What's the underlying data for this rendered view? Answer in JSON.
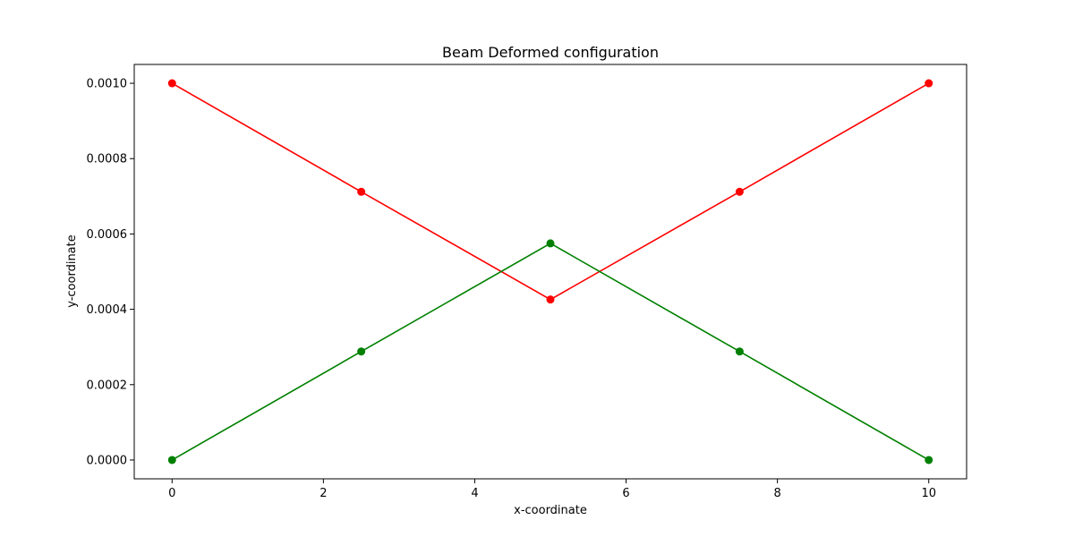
{
  "chart_data": {
    "type": "line",
    "title": "Beam Deformed configuration",
    "xlabel": "x-coordinate",
    "ylabel": "y-coordinate",
    "xlim": [
      -0.5,
      10.5
    ],
    "ylim": [
      -5e-05,
      0.00105
    ],
    "xticks": [
      {
        "value": 0,
        "label": "0"
      },
      {
        "value": 2,
        "label": "2"
      },
      {
        "value": 4,
        "label": "4"
      },
      {
        "value": 6,
        "label": "6"
      },
      {
        "value": 8,
        "label": "8"
      },
      {
        "value": 10,
        "label": "10"
      }
    ],
    "yticks": [
      {
        "value": 0.0,
        "label": "0.0000"
      },
      {
        "value": 0.0002,
        "label": "0.0002"
      },
      {
        "value": 0.0004,
        "label": "0.0004"
      },
      {
        "value": 0.0006,
        "label": "0.0006"
      },
      {
        "value": 0.0008,
        "label": "0.0008"
      },
      {
        "value": 0.001,
        "label": "0.0010"
      }
    ],
    "grid": false,
    "series": [
      {
        "name": "red-series",
        "color": "#ff0000",
        "x": [
          0,
          2.5,
          5,
          7.5,
          10
        ],
        "y": [
          0.001,
          0.000712,
          0.000426,
          0.000712,
          0.001
        ]
      },
      {
        "name": "green-series",
        "color": "#008000",
        "x": [
          0,
          2.5,
          5,
          7.5,
          10
        ],
        "y": [
          0.0,
          0.000288,
          0.000575,
          0.000288,
          0.0
        ]
      }
    ]
  }
}
